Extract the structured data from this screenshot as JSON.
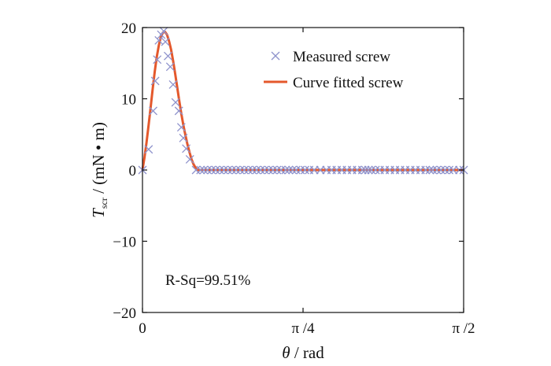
{
  "chart_data": {
    "type": "line",
    "xlim": [
      0,
      1.5708
    ],
    "ylim": [
      -20,
      20
    ],
    "x_ticks": [
      {
        "value": 0,
        "label": "0"
      },
      {
        "value": 0.7854,
        "label": "π /4"
      },
      {
        "value": 1.5708,
        "label": "π /2"
      }
    ],
    "y_ticks": [
      {
        "value": 20,
        "label": "20"
      },
      {
        "value": 10,
        "label": "10"
      },
      {
        "value": 0,
        "label": "0"
      },
      {
        "value": -10,
        "label": "−10"
      },
      {
        "value": -20,
        "label": "−20"
      }
    ],
    "xlabel": {
      "symbol": "θ",
      "rest": " / rad"
    },
    "ylabel": {
      "symbol": "T",
      "subscript": "scr",
      "rest": " / (mN • m)"
    },
    "annotation": "R-Sq=99.51%",
    "grid": false,
    "legend_position": "top-right",
    "series": [
      {
        "name": "Measured screw",
        "kind": "markers",
        "marker": "x",
        "color": "#8f93cc",
        "x": [
          0.0,
          0.03,
          0.052,
          0.062,
          0.072,
          0.08,
          0.092,
          0.104,
          0.112,
          0.125,
          0.136,
          0.15,
          0.162,
          0.178,
          0.19,
          0.2,
          0.214,
          0.232,
          0.262,
          0.284,
          0.3,
          0.318,
          0.338,
          0.358,
          0.378,
          0.398,
          0.418,
          0.438,
          0.458,
          0.478,
          0.498,
          0.518,
          0.538,
          0.558,
          0.578,
          0.598,
          0.618,
          0.638,
          0.658,
          0.678,
          0.7,
          0.716,
          0.734,
          0.752,
          0.773,
          0.795,
          0.815,
          0.84,
          0.87,
          0.9,
          0.925,
          0.95,
          0.975,
          1.0,
          1.025,
          1.05,
          1.075,
          1.09,
          1.105,
          1.12,
          1.14,
          1.16,
          1.185,
          1.21,
          1.235,
          1.26,
          1.285,
          1.31,
          1.335,
          1.36,
          1.385,
          1.405,
          1.42,
          1.44,
          1.46,
          1.48,
          1.5,
          1.52,
          1.55,
          1.571
        ],
        "y": [
          0.0,
          2.9,
          8.3,
          12.5,
          15.5,
          18.2,
          19.0,
          19.5,
          18.0,
          16.0,
          14.5,
          12.0,
          9.5,
          8.3,
          6.0,
          4.5,
          3.0,
          1.5,
          0.0,
          0.0,
          0.0,
          0.0,
          0.0,
          0.0,
          0.0,
          0.0,
          0.0,
          0.0,
          0.0,
          0.0,
          0.0,
          0.0,
          0.0,
          0.0,
          0.0,
          0.0,
          0.0,
          0.0,
          0.0,
          0.0,
          0.0,
          0.0,
          0.0,
          0.0,
          0.0,
          0.0,
          0.0,
          0.0,
          0.0,
          0.0,
          0.0,
          0.0,
          0.0,
          0.0,
          0.0,
          0.0,
          0.0,
          0.0,
          0.0,
          0.0,
          0.0,
          0.0,
          0.0,
          0.0,
          0.0,
          0.0,
          0.0,
          0.0,
          0.0,
          0.0,
          0.0,
          0.0,
          0.0,
          0.0,
          0.0,
          0.0,
          0.0,
          0.0,
          0.0,
          0.0
        ]
      },
      {
        "name": "Curve fitted screw",
        "kind": "line",
        "color": "#e4582c",
        "x": [
          0.0,
          0.01,
          0.02,
          0.03,
          0.04,
          0.05,
          0.06,
          0.07,
          0.08,
          0.09,
          0.1,
          0.11,
          0.12,
          0.13,
          0.14,
          0.15,
          0.16,
          0.17,
          0.18,
          0.19,
          0.2,
          0.21,
          0.22,
          0.23,
          0.24,
          0.25,
          0.26,
          0.27,
          0.525,
          0.535,
          0.545,
          0.555,
          0.565,
          0.575,
          0.585,
          0.595,
          0.605,
          0.615,
          0.625,
          0.635,
          0.645,
          0.655,
          0.665,
          0.675,
          0.685,
          0.695,
          0.705,
          0.715,
          0.725,
          0.735,
          0.745,
          0.755,
          0.765,
          0.775,
          0.785,
          0.795,
          0.805,
          0.815,
          0.825,
          0.835,
          0.845,
          0.855,
          0.865,
          0.875,
          0.885,
          0.895,
          0.905,
          0.915,
          0.925,
          0.935,
          0.945,
          0.955,
          0.965,
          0.975,
          0.985,
          0.995,
          1.005,
          1.015,
          1.025,
          1.035,
          1.045,
          1.055,
          1.065,
          1.075,
          1.085,
          1.095,
          1.105,
          1.115,
          1.125,
          1.135,
          1.145,
          1.155,
          1.165,
          1.175,
          1.185,
          1.195,
          1.205,
          1.215,
          1.225,
          1.235,
          1.245,
          1.255,
          1.265,
          1.275,
          1.285,
          1.295,
          1.305,
          1.315,
          1.325,
          1.335,
          1.345,
          1.355,
          1.365,
          1.375,
          1.385,
          1.395,
          1.405,
          1.415,
          1.425,
          1.435,
          1.445,
          1.455,
          1.465,
          1.475,
          1.485,
          1.495,
          1.505,
          1.515,
          1.525,
          1.535,
          1.545,
          1.555,
          1.571
        ],
        "y": [
          0.0,
          1.8,
          3.9,
          6.3,
          8.8,
          11.4,
          13.8,
          15.9,
          17.5,
          18.7,
          19.3,
          19.4,
          19.0,
          18.1,
          16.9,
          15.3,
          13.5,
          11.6,
          9.7,
          7.9,
          6.3,
          4.9,
          3.6,
          2.5,
          1.5,
          0.8,
          0.3,
          0.0,
          0.0,
          -0.0,
          -0.0,
          -0.0,
          -0.0,
          -0.0,
          -0.0,
          -0.0,
          -0.0,
          -0.0,
          -0.0,
          -0.0,
          -0.0,
          -0.0,
          -0.0,
          -0.0,
          -0.0,
          -0.0,
          -0.0,
          -0.0,
          -0.0,
          -0.0,
          -0.0,
          -0.0,
          -0.0,
          -0.0,
          -0.0,
          -0.0,
          -0.0,
          -0.0,
          -0.0,
          -0.0,
          -0.0,
          -0.0,
          -0.0,
          -0.0,
          -0.0,
          -0.0,
          -0.0,
          -0.0,
          -0.0,
          -0.0,
          -0.0,
          -0.0,
          -0.0,
          -0.0,
          -0.0,
          -0.0,
          -0.0,
          -0.0,
          -0.0,
          -0.0,
          -0.0,
          -0.0,
          -0.0,
          -0.0,
          -0.0,
          -0.0,
          -0.0,
          -0.0,
          -0.0,
          -0.0,
          -0.0,
          -0.0,
          -0.0,
          -0.0,
          -0.0,
          -0.0,
          -0.0,
          -0.0,
          -0.0,
          -0.0,
          -0.0,
          -0.0,
          -0.0,
          -0.0,
          -0.0,
          -0.0,
          -0.0,
          -0.0,
          -0.0,
          -0.0,
          -0.0,
          -0.0,
          -0.0,
          -0.0,
          -0.0,
          -0.0,
          -0.0,
          -0.0,
          -0.0,
          -0.0,
          -0.0,
          -0.0,
          -0.0,
          -0.0,
          -0.0,
          -0.0,
          -0.0,
          -0.0,
          -0.0,
          -0.0,
          -0.0,
          -0.0,
          -0.0
        ]
      }
    ]
  }
}
